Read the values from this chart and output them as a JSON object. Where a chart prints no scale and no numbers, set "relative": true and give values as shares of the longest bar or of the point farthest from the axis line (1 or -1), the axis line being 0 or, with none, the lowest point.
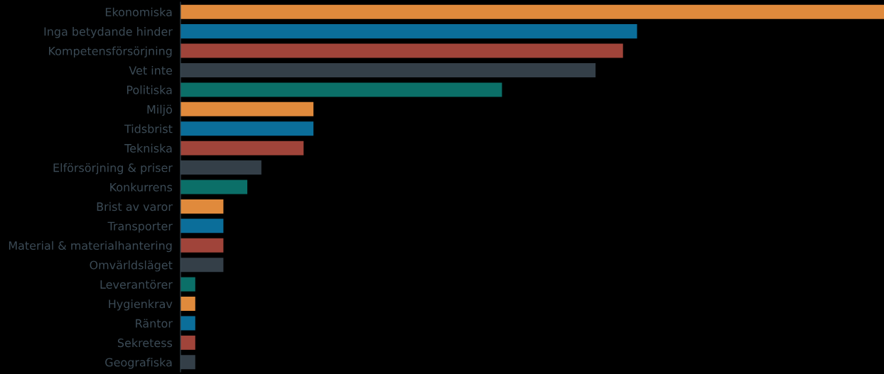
{
  "chart_data": {
    "type": "bar",
    "orientation": "horizontal",
    "relative": true,
    "categories": [
      "Ekonomiska",
      "Inga betydande hinder",
      "Kompetensförsörjning",
      "Vet inte",
      "Politiska",
      "Miljö",
      "Tidsbrist",
      "Tekniska",
      "Elförsörjning & priser",
      "Konkurrens",
      "Brist av varor",
      "Transporter",
      "Material & materialhantering",
      "Omvärldsläget",
      "Leverantörer",
      "Hygienkrav",
      "Räntor",
      "Sekretess",
      "Geografiska"
    ],
    "values": [
      1,
      0.649,
      0.629,
      0.59,
      0.457,
      0.189,
      0.189,
      0.175,
      0.115,
      0.095,
      0.061,
      0.061,
      0.061,
      0.061,
      0.021,
      0.021,
      0.021,
      0.021,
      0.021
    ],
    "colors": [
      "#e08a3c",
      "#0b6e9a",
      "#a0443a",
      "#343f48",
      "#0b6f68",
      "#e08a3c",
      "#0b6e9a",
      "#a0443a",
      "#343f48",
      "#0b6f68",
      "#e08a3c",
      "#0b6e9a",
      "#a0443a",
      "#343f48",
      "#0b6f68",
      "#e08a3c",
      "#0b6e9a",
      "#a0443a",
      "#343f48"
    ],
    "grid": false,
    "legend": false
  }
}
